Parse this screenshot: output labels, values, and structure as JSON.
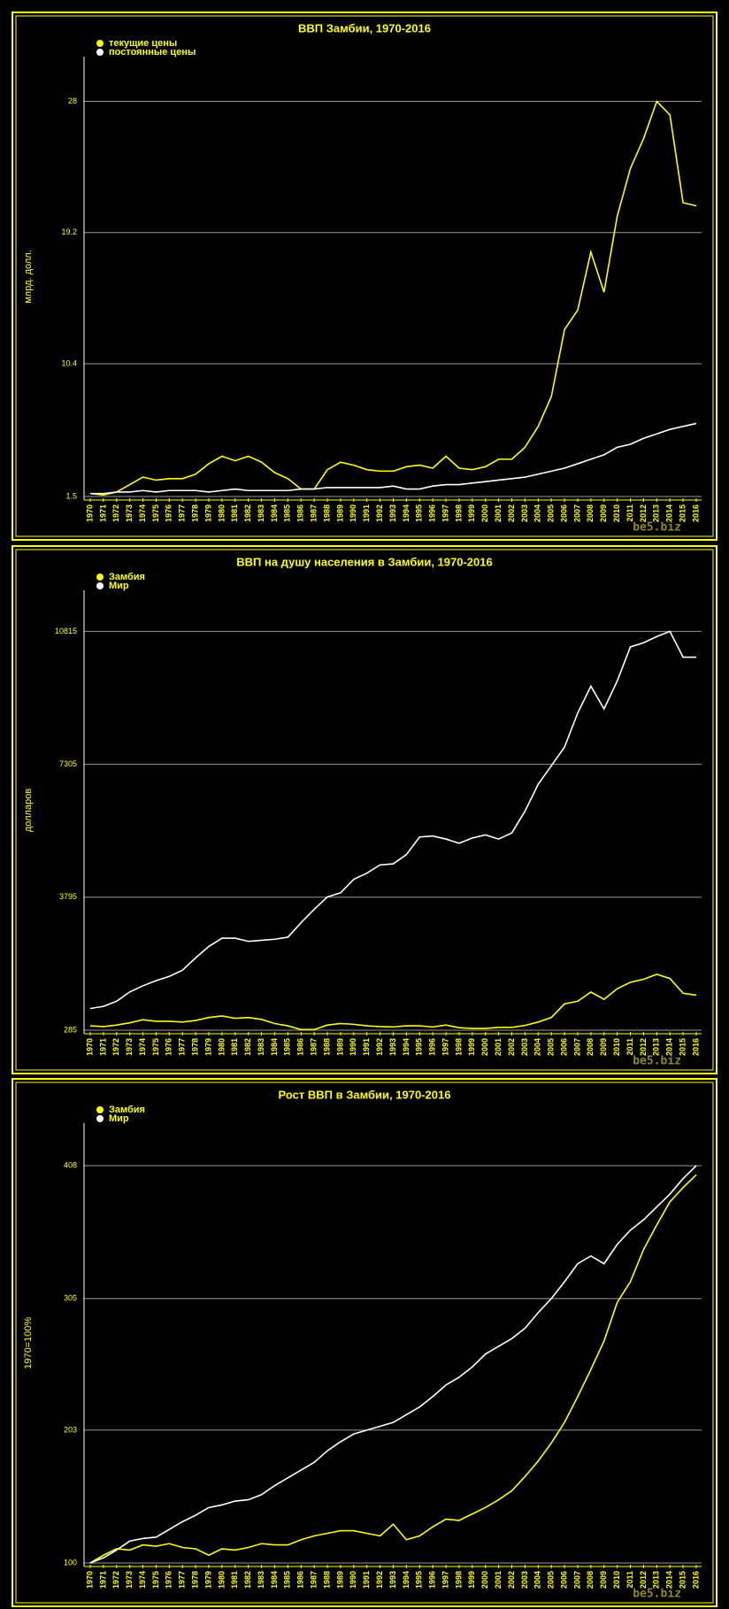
{
  "chart_data": [
    {
      "type": "line",
      "title": "ВВП Замбии, 1970-2016",
      "y_label": "млрд. долл.",
      "watermark": "be5.biz",
      "categories": [
        "1970",
        "1971",
        "1972",
        "1973",
        "1974",
        "1975",
        "1976",
        "1977",
        "1978",
        "1979",
        "1980",
        "1981",
        "1982",
        "1983",
        "1984",
        "1985",
        "1986",
        "1987",
        "1988",
        "1989",
        "1990",
        "1991",
        "1992",
        "1993",
        "1994",
        "1995",
        "1996",
        "1997",
        "1998",
        "1999",
        "2000",
        "2001",
        "2002",
        "2003",
        "2004",
        "2005",
        "2006",
        "2007",
        "2008",
        "2009",
        "2010",
        "2011",
        "2012",
        "2013",
        "2014",
        "2015",
        "2016"
      ],
      "series": [
        {
          "name": "текущие цены",
          "color": "#ffff00",
          "values": [
            1.7,
            1.6,
            1.8,
            2.3,
            2.8,
            2.6,
            2.7,
            2.7,
            3.0,
            3.7,
            4.2,
            3.9,
            4.2,
            3.8,
            3.1,
            2.7,
            2.0,
            2.0,
            3.3,
            3.8,
            3.6,
            3.3,
            3.2,
            3.2,
            3.5,
            3.6,
            3.4,
            4.2,
            3.4,
            3.3,
            3.5,
            4.0,
            4.0,
            4.8,
            6.2,
            8.2,
            12.7,
            14.0,
            17.9,
            15.2,
            20.3,
            23.5,
            25.5,
            28.0,
            27.1,
            21.2,
            21.0
          ]
        },
        {
          "name": "постоянные цены",
          "color": "#ffffff",
          "values": [
            1.7,
            1.7,
            1.8,
            1.8,
            1.9,
            1.8,
            1.9,
            1.9,
            1.9,
            1.8,
            1.9,
            2.0,
            1.9,
            1.9,
            1.9,
            1.9,
            2.0,
            2.0,
            2.1,
            2.1,
            2.1,
            2.1,
            2.1,
            2.2,
            2.0,
            2.0,
            2.2,
            2.3,
            2.3,
            2.4,
            2.5,
            2.6,
            2.7,
            2.8,
            3.0,
            3.2,
            3.4,
            3.7,
            4.0,
            4.3,
            4.8,
            5.0,
            5.4,
            5.7,
            6.0,
            6.2,
            6.4
          ]
        }
      ],
      "ylim": [
        1.5,
        31
      ],
      "yticks": [
        1.5,
        10.4,
        19.2,
        28
      ],
      "grid": true
    },
    {
      "type": "line",
      "title": "ВВП на душу населения в Замбии, 1970-2016",
      "y_label": "долларов",
      "watermark": "be5.biz",
      "categories": [
        "1970",
        "1971",
        "1972",
        "1973",
        "1974",
        "1975",
        "1976",
        "1977",
        "1978",
        "1979",
        "1980",
        "1981",
        "1982",
        "1983",
        "1984",
        "1985",
        "1986",
        "1987",
        "1988",
        "1989",
        "1990",
        "1991",
        "1992",
        "1993",
        "1994",
        "1995",
        "1996",
        "1997",
        "1998",
        "1999",
        "2000",
        "2001",
        "2002",
        "2003",
        "2004",
        "2005",
        "2006",
        "2007",
        "2008",
        "2009",
        "2010",
        "2011",
        "2012",
        "2013",
        "2014",
        "2015",
        "2016"
      ],
      "series": [
        {
          "name": "Замбия",
          "color": "#ffff00",
          "values": [
            400,
            380,
            420,
            480,
            560,
            520,
            520,
            500,
            540,
            620,
            660,
            600,
            620,
            570,
            460,
            400,
            300,
            300,
            420,
            460,
            440,
            400,
            380,
            370,
            400,
            400,
            370,
            420,
            350,
            330,
            330,
            360,
            360,
            410,
            500,
            620,
            980,
            1050,
            1290,
            1100,
            1380,
            1550,
            1630,
            1760,
            1650,
            1260,
            1210
          ]
        },
        {
          "name": "Мир",
          "color": "#ffffff",
          "values": [
            858,
            913,
            1049,
            1295,
            1458,
            1595,
            1704,
            1868,
            2195,
            2495,
            2713,
            2713,
            2631,
            2658,
            2686,
            2740,
            3122,
            3477,
            3804,
            3913,
            4268,
            4431,
            4650,
            4677,
            4922,
            5386,
            5413,
            5331,
            5222,
            5359,
            5441,
            5331,
            5495,
            6068,
            6777,
            7268,
            7760,
            8660,
            9369,
            8769,
            9506,
            10406,
            10515,
            10679,
            10815,
            10133,
            10133
          ]
        }
      ],
      "ylim": [
        285,
        11900
      ],
      "yticks": [
        285,
        3795,
        7305,
        10815
      ],
      "grid": true
    },
    {
      "type": "line",
      "title": "Рост ВВП в Замбии, 1970-2016",
      "y_label": "1970=100%",
      "watermark": "be5.biz",
      "categories": [
        "1970",
        "1971",
        "1972",
        "1973",
        "1974",
        "1975",
        "1976",
        "1977",
        "1978",
        "1979",
        "1980",
        "1981",
        "1982",
        "1983",
        "1984",
        "1985",
        "1986",
        "1987",
        "1988",
        "1989",
        "1990",
        "1991",
        "1992",
        "1993",
        "1994",
        "1995",
        "1996",
        "1997",
        "1998",
        "1999",
        "2000",
        "2001",
        "2002",
        "2003",
        "2004",
        "2005",
        "2006",
        "2007",
        "2008",
        "2009",
        "2010",
        "2011",
        "2012",
        "2013",
        "2014",
        "2015",
        "2016"
      ],
      "series": [
        {
          "name": "Замбия",
          "color": "#ffff00",
          "values": [
            100,
            106,
            111,
            110,
            114,
            113,
            115,
            112,
            111,
            106,
            111,
            110,
            112,
            115,
            114,
            114,
            118,
            121,
            123,
            125,
            125,
            123,
            121,
            130,
            118,
            121,
            128,
            134,
            133,
            138,
            143,
            149,
            156,
            167,
            179,
            193,
            209,
            229,
            250,
            272,
            302,
            318,
            343,
            362,
            380,
            391,
            401
          ]
        },
        {
          "name": "Мир",
          "color": "#ffffff",
          "values": [
            100,
            104,
            110,
            117,
            119,
            120,
            126,
            132,
            137,
            143,
            145,
            148,
            149,
            153,
            160,
            166,
            172,
            178,
            187,
            194,
            200,
            203,
            206,
            209,
            215,
            221,
            229,
            238,
            244,
            252,
            262,
            268,
            274,
            282,
            294,
            305,
            318,
            332,
            338,
            332,
            347,
            358,
            366,
            376,
            386,
            398,
            408
          ]
        }
      ],
      "ylim": [
        100,
        441
      ],
      "yticks": [
        100,
        203,
        305,
        408
      ],
      "grid": true
    }
  ]
}
